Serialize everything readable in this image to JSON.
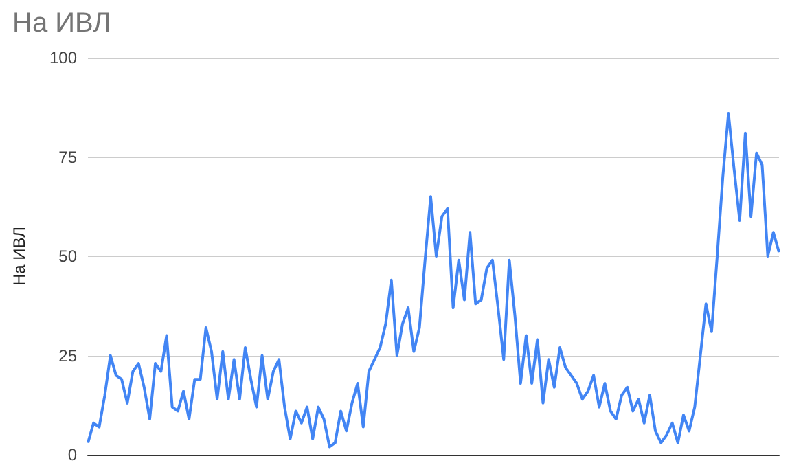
{
  "chart_data": {
    "type": "line",
    "title": "На ИВЛ",
    "ylabel": "На ИВЛ",
    "categories": [
      null,
      null,
      null,
      null,
      null,
      null,
      null,
      null,
      null,
      null,
      null,
      null,
      null,
      null,
      null,
      null,
      null,
      null,
      null,
      null,
      null,
      null,
      null,
      null,
      null,
      null,
      null,
      null,
      null,
      null,
      null,
      null,
      null,
      null,
      null,
      null,
      null,
      null,
      null,
      null,
      null,
      null,
      null,
      null,
      null,
      null,
      null,
      null,
      null,
      null,
      null,
      null,
      null,
      null,
      null,
      null,
      null,
      null,
      null,
      null,
      null,
      null,
      null,
      null,
      null,
      null,
      null,
      null,
      null,
      null,
      null,
      null,
      null,
      null,
      null,
      null,
      null,
      null,
      null,
      null,
      null,
      null,
      null,
      null,
      null,
      null,
      null,
      null,
      null,
      null,
      null,
      null,
      null,
      null,
      null,
      null,
      null,
      null,
      null,
      null,
      null,
      null,
      null,
      null,
      null,
      null,
      null,
      null,
      null,
      null,
      null,
      null,
      null,
      null,
      null,
      null,
      null,
      null,
      null,
      null,
      null,
      null,
      null,
      null
    ],
    "series": [
      {
        "color": "#4285f4",
        "values": [
          3,
          8,
          7,
          15,
          25,
          20,
          19,
          13,
          21,
          23,
          17,
          9,
          23,
          21,
          30,
          12,
          11,
          16,
          9,
          19,
          19,
          32,
          26,
          14,
          26,
          14,
          24,
          14,
          27,
          19,
          12,
          25,
          14,
          21,
          24,
          12,
          4,
          11,
          8,
          12,
          4,
          12,
          9,
          2,
          3,
          11,
          6,
          13,
          18,
          7,
          21,
          24,
          27,
          33,
          44,
          25,
          33,
          37,
          26,
          32,
          49,
          65,
          50,
          60,
          62,
          37,
          49,
          39,
          56,
          38,
          39,
          47,
          49,
          37,
          24,
          49,
          35,
          18,
          30,
          18,
          29,
          13,
          24,
          17,
          27,
          22,
          20,
          18,
          14,
          16,
          20,
          12,
          18,
          11,
          9,
          15,
          17,
          11,
          14,
          8,
          15,
          6,
          3,
          5,
          8,
          3,
          10,
          6,
          12,
          25,
          38,
          31,
          50,
          70,
          86,
          72,
          59,
          81,
          60,
          76,
          73,
          50,
          56,
          51
        ]
      }
    ],
    "ylim": [
      0,
      100
    ],
    "yticks": [
      0,
      25,
      50,
      75,
      100
    ],
    "grid": "y",
    "tick_labels": "y",
    "line_style": "solid"
  }
}
